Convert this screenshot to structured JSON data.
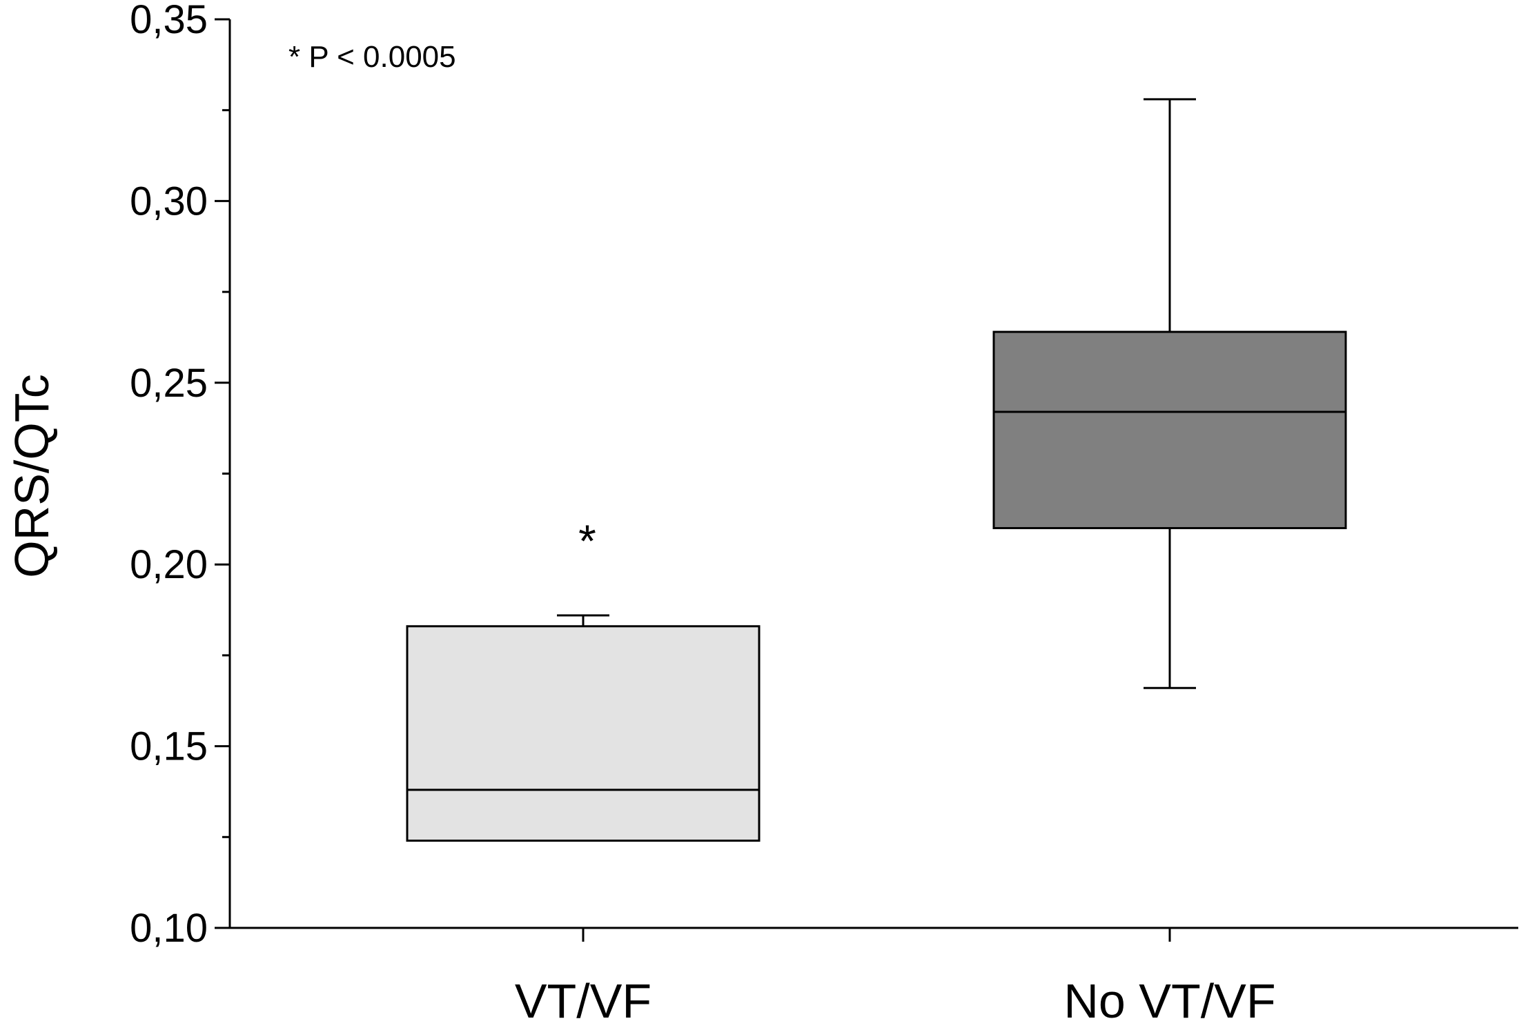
{
  "chart_data": {
    "type": "box",
    "ylabel": "QRS/QTc",
    "xlabel": "",
    "ylim": [
      0.1,
      0.35
    ],
    "yticks": [
      {
        "value": 0.1,
        "label": "0,10"
      },
      {
        "value": 0.15,
        "label": "0,15"
      },
      {
        "value": 0.2,
        "label": "0,20"
      },
      {
        "value": 0.25,
        "label": "0,25"
      },
      {
        "value": 0.3,
        "label": "0,30"
      },
      {
        "value": 0.35,
        "label": "0,35"
      }
    ],
    "categories": [
      "VT/VF",
      "No VT/VF"
    ],
    "boxes": [
      {
        "category": "VT/VF",
        "min": 0.124,
        "q1": 0.124,
        "median": 0.138,
        "q3": 0.183,
        "max": 0.186,
        "fill": "#e3e3e3",
        "marker": "*"
      },
      {
        "category": "No VT/VF",
        "min": 0.166,
        "q1": 0.21,
        "median": 0.242,
        "q3": 0.264,
        "max": 0.328,
        "fill": "#808080",
        "marker": ""
      }
    ],
    "annotation": "* P < 0.0005",
    "grid": false,
    "legend": "none"
  }
}
